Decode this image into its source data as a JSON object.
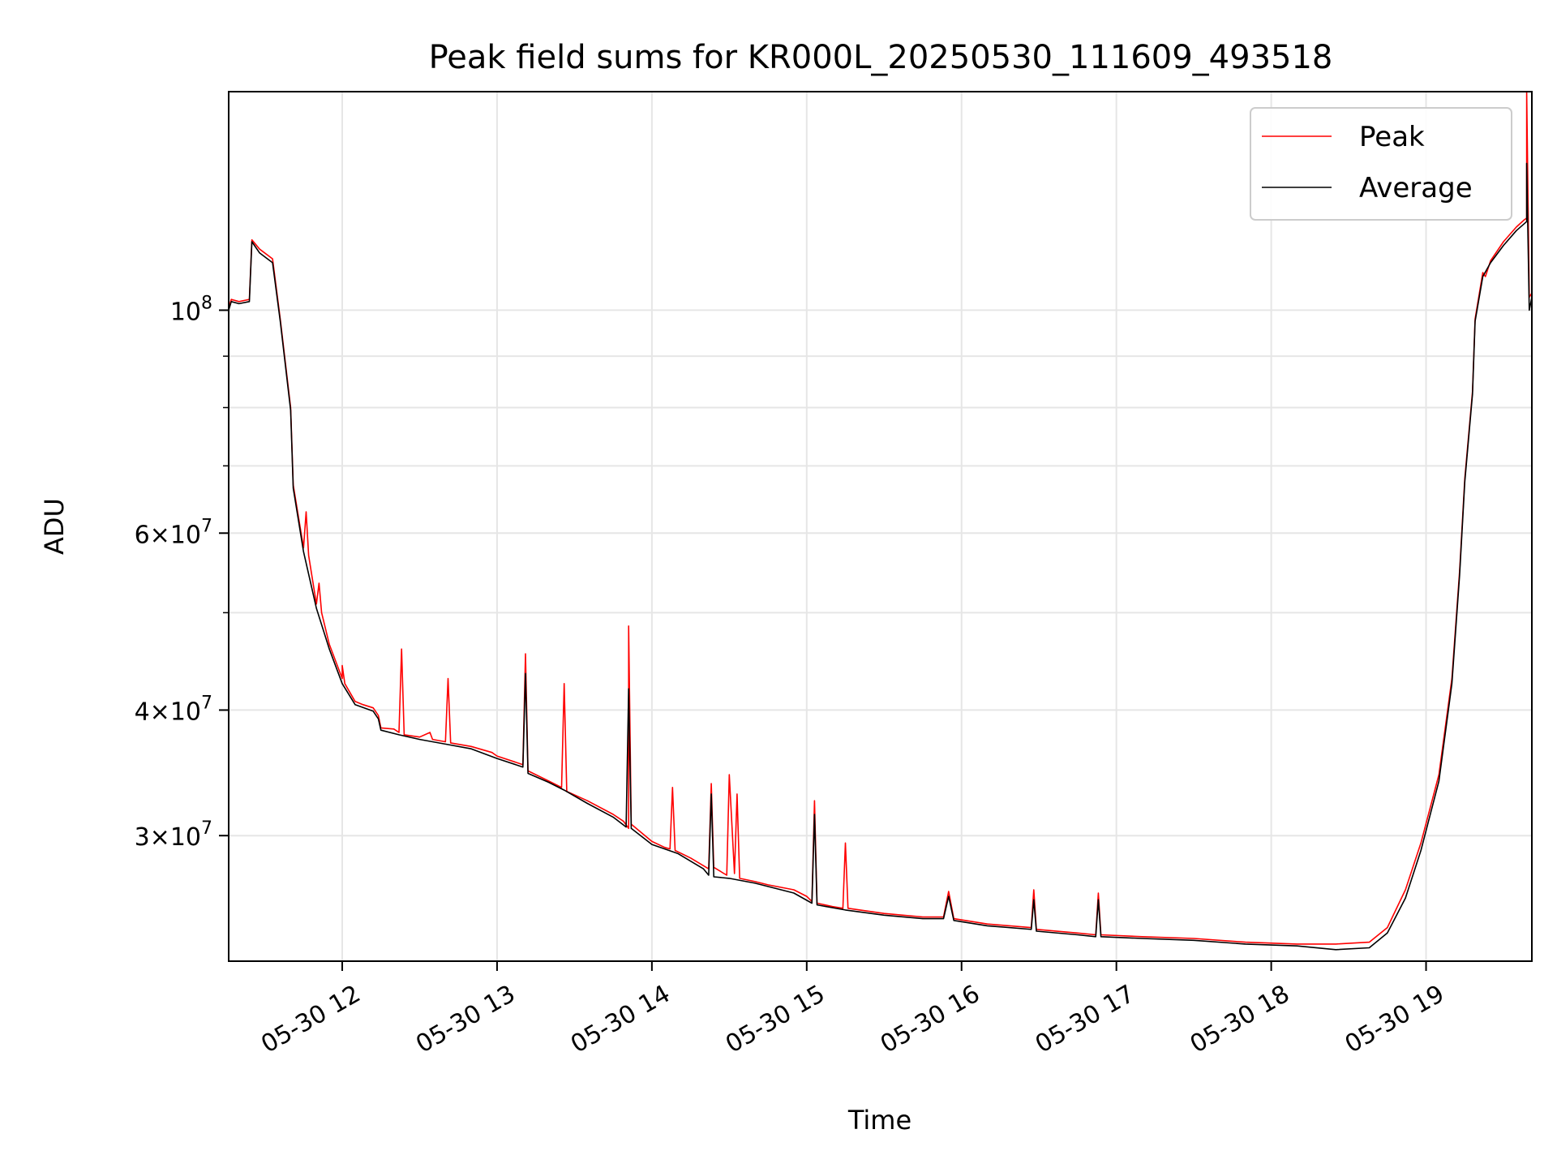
{
  "chart_data": {
    "type": "line",
    "title": "Peak field sums for KR000L_20250530_111609_493518",
    "xlabel": "Time",
    "ylabel": "ADU",
    "x_scale": "time",
    "y_scale": "log",
    "xlim": [
      "2025-05-30 11:16",
      "2025-05-30 19:41"
    ],
    "ylim": [
      22500000,
      165000000
    ],
    "grid": true,
    "legend_position": "upper right",
    "x_ticks": [
      {
        "value": "2025-05-30 12:00",
        "label": "05-30 12"
      },
      {
        "value": "2025-05-30 13:00",
        "label": "05-30 13"
      },
      {
        "value": "2025-05-30 14:00",
        "label": "05-30 14"
      },
      {
        "value": "2025-05-30 15:00",
        "label": "05-30 15"
      },
      {
        "value": "2025-05-30 16:00",
        "label": "05-30 16"
      },
      {
        "value": "2025-05-30 17:00",
        "label": "05-30 17"
      },
      {
        "value": "2025-05-30 18:00",
        "label": "05-30 18"
      },
      {
        "value": "2025-05-30 19:00",
        "label": "05-30 19"
      }
    ],
    "y_ticks": [
      {
        "value": 100000000,
        "mantissa": "",
        "base": "10",
        "exponent": "8"
      },
      {
        "value": 60000000,
        "mantissa": "6×",
        "base": "10",
        "exponent": "7"
      },
      {
        "value": 40000000,
        "mantissa": "4×",
        "base": "10",
        "exponent": "7"
      },
      {
        "value": 30000000,
        "mantissa": "3×",
        "base": "10",
        "exponent": "7"
      }
    ],
    "y_minor_ticks": [
      50000000,
      70000000,
      80000000,
      90000000
    ],
    "series": [
      {
        "name": "Peak",
        "color": "#ff0000",
        "points": [
          [
            "2025-05-30 11:16",
            100500000
          ],
          [
            "2025-05-30 11:17",
            102500000
          ],
          [
            "2025-05-30 11:20",
            102000000
          ],
          [
            "2025-05-30 11:24",
            102500000
          ],
          [
            "2025-05-30 11:25",
            117500000
          ],
          [
            "2025-05-30 11:28",
            115000000
          ],
          [
            "2025-05-30 11:33",
            112500000
          ],
          [
            "2025-05-30 11:36",
            98000000
          ],
          [
            "2025-05-30 11:40",
            80000000
          ],
          [
            "2025-05-30 11:41",
            67000000
          ],
          [
            "2025-05-30 11:45",
            58000000
          ],
          [
            "2025-05-30 11:46",
            63000000
          ],
          [
            "2025-05-30 11:47",
            57000000
          ],
          [
            "2025-05-30 11:50",
            51000000
          ],
          [
            "2025-05-30 11:51",
            53500000
          ],
          [
            "2025-05-30 11:52",
            50000000
          ],
          [
            "2025-05-30 11:55",
            46500000
          ],
          [
            "2025-05-30 12:00",
            43000000
          ],
          [
            "2025-05-30 12:00",
            44300000
          ],
          [
            "2025-05-30 12:01",
            42500000
          ],
          [
            "2025-05-30 12:05",
            40800000
          ],
          [
            "2025-05-30 12:08",
            40500000
          ],
          [
            "2025-05-30 12:12",
            40200000
          ],
          [
            "2025-05-30 12:14",
            39500000
          ],
          [
            "2025-05-30 12:15",
            38400000
          ],
          [
            "2025-05-30 12:20",
            38300000
          ],
          [
            "2025-05-30 12:22",
            38000000
          ],
          [
            "2025-05-30 12:23",
            46000000
          ],
          [
            "2025-05-30 12:24",
            37800000
          ],
          [
            "2025-05-30 12:30",
            37600000
          ],
          [
            "2025-05-30 12:34",
            38000000
          ],
          [
            "2025-05-30 12:35",
            37400000
          ],
          [
            "2025-05-30 12:40",
            37200000
          ],
          [
            "2025-05-30 12:41",
            43000000
          ],
          [
            "2025-05-30 12:42",
            37100000
          ],
          [
            "2025-05-30 12:50",
            36800000
          ],
          [
            "2025-05-30 12:58",
            36300000
          ],
          [
            "2025-05-30 13:00",
            36000000
          ],
          [
            "2025-05-30 13:10",
            35300000
          ],
          [
            "2025-05-30 13:11",
            45500000
          ],
          [
            "2025-05-30 13:12",
            34800000
          ],
          [
            "2025-05-30 13:20",
            34000000
          ],
          [
            "2025-05-30 13:25",
            33500000
          ],
          [
            "2025-05-30 13:26",
            42500000
          ],
          [
            "2025-05-30 13:27",
            33200000
          ],
          [
            "2025-05-30 13:35",
            32500000
          ],
          [
            "2025-05-30 13:45",
            31500000
          ],
          [
            "2025-05-30 13:49",
            31000000
          ],
          [
            "2025-05-30 13:51",
            30500000
          ],
          [
            "2025-05-30 13:51",
            48500000
          ],
          [
            "2025-05-30 13:52",
            30800000
          ],
          [
            "2025-05-30 14:00",
            29600000
          ],
          [
            "2025-05-30 14:05",
            29200000
          ],
          [
            "2025-05-30 14:07",
            29100000
          ],
          [
            "2025-05-30 14:08",
            33500000
          ],
          [
            "2025-05-30 14:09",
            29000000
          ],
          [
            "2025-05-30 14:15",
            28500000
          ],
          [
            "2025-05-30 14:22",
            27800000
          ],
          [
            "2025-05-30 14:23",
            33800000
          ],
          [
            "2025-05-30 14:24",
            27900000
          ],
          [
            "2025-05-30 14:29",
            27400000
          ],
          [
            "2025-05-30 14:30",
            34500000
          ],
          [
            "2025-05-30 14:32",
            27500000
          ],
          [
            "2025-05-30 14:33",
            33000000
          ],
          [
            "2025-05-30 14:34",
            27200000
          ],
          [
            "2025-05-30 14:40",
            27000000
          ],
          [
            "2025-05-30 14:45",
            26800000
          ],
          [
            "2025-05-30 14:55",
            26500000
          ],
          [
            "2025-05-30 15:00",
            26100000
          ],
          [
            "2025-05-30 15:02",
            25800000
          ],
          [
            "2025-05-30 15:03",
            32500000
          ],
          [
            "2025-05-30 15:04",
            25700000
          ],
          [
            "2025-05-30 15:10",
            25500000
          ],
          [
            "2025-05-30 15:14",
            25400000
          ],
          [
            "2025-05-30 15:15",
            29500000
          ],
          [
            "2025-05-30 15:16",
            25400000
          ],
          [
            "2025-05-30 15:30",
            25100000
          ],
          [
            "2025-05-30 15:45",
            24900000
          ],
          [
            "2025-05-30 15:53",
            24900000
          ],
          [
            "2025-05-30 15:55",
            26400000
          ],
          [
            "2025-05-30 15:57",
            24800000
          ],
          [
            "2025-05-30 16:10",
            24500000
          ],
          [
            "2025-05-30 16:27",
            24300000
          ],
          [
            "2025-05-30 16:28",
            26500000
          ],
          [
            "2025-05-30 16:29",
            24200000
          ],
          [
            "2025-05-30 16:45",
            24000000
          ],
          [
            "2025-05-30 16:52",
            23900000
          ],
          [
            "2025-05-30 16:53",
            26300000
          ],
          [
            "2025-05-30 16:54",
            23900000
          ],
          [
            "2025-05-30 17:10",
            23800000
          ],
          [
            "2025-05-30 17:30",
            23700000
          ],
          [
            "2025-05-30 17:50",
            23500000
          ],
          [
            "2025-05-30 18:10",
            23400000
          ],
          [
            "2025-05-30 18:25",
            23400000
          ],
          [
            "2025-05-30 18:38",
            23500000
          ],
          [
            "2025-05-30 18:45",
            24300000
          ],
          [
            "2025-05-30 18:52",
            26500000
          ],
          [
            "2025-05-30 18:58",
            29500000
          ],
          [
            "2025-05-30 19:05",
            34500000
          ],
          [
            "2025-05-30 19:10",
            43000000
          ],
          [
            "2025-05-30 19:13",
            55000000
          ],
          [
            "2025-05-30 19:15",
            68000000
          ],
          [
            "2025-05-30 19:18",
            83000000
          ],
          [
            "2025-05-30 19:19",
            98000000
          ],
          [
            "2025-05-30 19:22",
            109000000
          ],
          [
            "2025-05-30 19:23",
            108000000
          ],
          [
            "2025-05-30 19:25",
            112000000
          ],
          [
            "2025-05-30 19:30",
            117000000
          ],
          [
            "2025-05-30 19:35",
            121000000
          ],
          [
            "2025-05-30 19:38",
            123000000
          ],
          [
            "2025-05-30 19:39",
            123500000
          ],
          [
            "2025-05-30 19:39",
            165000000
          ],
          [
            "2025-05-30 19:40",
            103000000
          ],
          [
            "2025-05-30 19:41",
            104000000
          ]
        ]
      },
      {
        "name": "Average",
        "color": "#000000",
        "points": [
          [
            "2025-05-30 11:16",
            100000000
          ],
          [
            "2025-05-30 11:17",
            102000000
          ],
          [
            "2025-05-30 11:20",
            101500000
          ],
          [
            "2025-05-30 11:24",
            102000000
          ],
          [
            "2025-05-30 11:25",
            117000000
          ],
          [
            "2025-05-30 11:28",
            114000000
          ],
          [
            "2025-05-30 11:33",
            111500000
          ],
          [
            "2025-05-30 11:36",
            97500000
          ],
          [
            "2025-05-30 11:40",
            79500000
          ],
          [
            "2025-05-30 11:41",
            66500000
          ],
          [
            "2025-05-30 11:45",
            57500000
          ],
          [
            "2025-05-30 11:50",
            50500000
          ],
          [
            "2025-05-30 11:55",
            46000000
          ],
          [
            "2025-05-30 12:00",
            42500000
          ],
          [
            "2025-05-30 12:05",
            40500000
          ],
          [
            "2025-05-30 12:12",
            39900000
          ],
          [
            "2025-05-30 12:14",
            39200000
          ],
          [
            "2025-05-30 12:15",
            38200000
          ],
          [
            "2025-05-30 12:22",
            37800000
          ],
          [
            "2025-05-30 12:30",
            37400000
          ],
          [
            "2025-05-30 12:40",
            37000000
          ],
          [
            "2025-05-30 12:50",
            36600000
          ],
          [
            "2025-05-30 13:00",
            35800000
          ],
          [
            "2025-05-30 13:10",
            35100000
          ],
          [
            "2025-05-30 13:11",
            43500000
          ],
          [
            "2025-05-30 13:12",
            34600000
          ],
          [
            "2025-05-30 13:20",
            33900000
          ],
          [
            "2025-05-30 13:26",
            33300000
          ],
          [
            "2025-05-30 13:35",
            32300000
          ],
          [
            "2025-05-30 13:45",
            31300000
          ],
          [
            "2025-05-30 13:50",
            30600000
          ],
          [
            "2025-05-30 13:51",
            42000000
          ],
          [
            "2025-05-30 13:52",
            30500000
          ],
          [
            "2025-05-30 14:00",
            29400000
          ],
          [
            "2025-05-30 14:10",
            28800000
          ],
          [
            "2025-05-30 14:20",
            27800000
          ],
          [
            "2025-05-30 14:22",
            27400000
          ],
          [
            "2025-05-30 14:23",
            33000000
          ],
          [
            "2025-05-30 14:24",
            27300000
          ],
          [
            "2025-05-30 14:30",
            27200000
          ],
          [
            "2025-05-30 14:40",
            26900000
          ],
          [
            "2025-05-30 14:55",
            26300000
          ],
          [
            "2025-05-30 15:02",
            25700000
          ],
          [
            "2025-05-30 15:03",
            31500000
          ],
          [
            "2025-05-30 15:04",
            25600000
          ],
          [
            "2025-05-30 15:15",
            25300000
          ],
          [
            "2025-05-30 15:30",
            25000000
          ],
          [
            "2025-05-30 15:45",
            24800000
          ],
          [
            "2025-05-30 15:53",
            24800000
          ],
          [
            "2025-05-30 15:55",
            26100000
          ],
          [
            "2025-05-30 15:57",
            24700000
          ],
          [
            "2025-05-30 16:10",
            24400000
          ],
          [
            "2025-05-30 16:27",
            24200000
          ],
          [
            "2025-05-30 16:28",
            25900000
          ],
          [
            "2025-05-30 16:29",
            24100000
          ],
          [
            "2025-05-30 16:45",
            23900000
          ],
          [
            "2025-05-30 16:52",
            23800000
          ],
          [
            "2025-05-30 16:53",
            25900000
          ],
          [
            "2025-05-30 16:54",
            23800000
          ],
          [
            "2025-05-30 17:10",
            23700000
          ],
          [
            "2025-05-30 17:30",
            23600000
          ],
          [
            "2025-05-30 17:50",
            23400000
          ],
          [
            "2025-05-30 18:10",
            23300000
          ],
          [
            "2025-05-30 18:25",
            23100000
          ],
          [
            "2025-05-30 18:38",
            23200000
          ],
          [
            "2025-05-30 18:45",
            24000000
          ],
          [
            "2025-05-30 18:52",
            26000000
          ],
          [
            "2025-05-30 18:58",
            29000000
          ],
          [
            "2025-05-30 19:05",
            34000000
          ],
          [
            "2025-05-30 19:10",
            42500000
          ],
          [
            "2025-05-30 19:13",
            54500000
          ],
          [
            "2025-05-30 19:15",
            67500000
          ],
          [
            "2025-05-30 19:18",
            82500000
          ],
          [
            "2025-05-30 19:19",
            97500000
          ],
          [
            "2025-05-30 19:22",
            108000000
          ],
          [
            "2025-05-30 19:25",
            111500000
          ],
          [
            "2025-05-30 19:30",
            116000000
          ],
          [
            "2025-05-30 19:35",
            120000000
          ],
          [
            "2025-05-30 19:39",
            122500000
          ],
          [
            "2025-05-30 19:39",
            140000000
          ],
          [
            "2025-05-30 19:40",
            100000000
          ],
          [
            "2025-05-30 19:41",
            103000000
          ]
        ]
      }
    ]
  }
}
